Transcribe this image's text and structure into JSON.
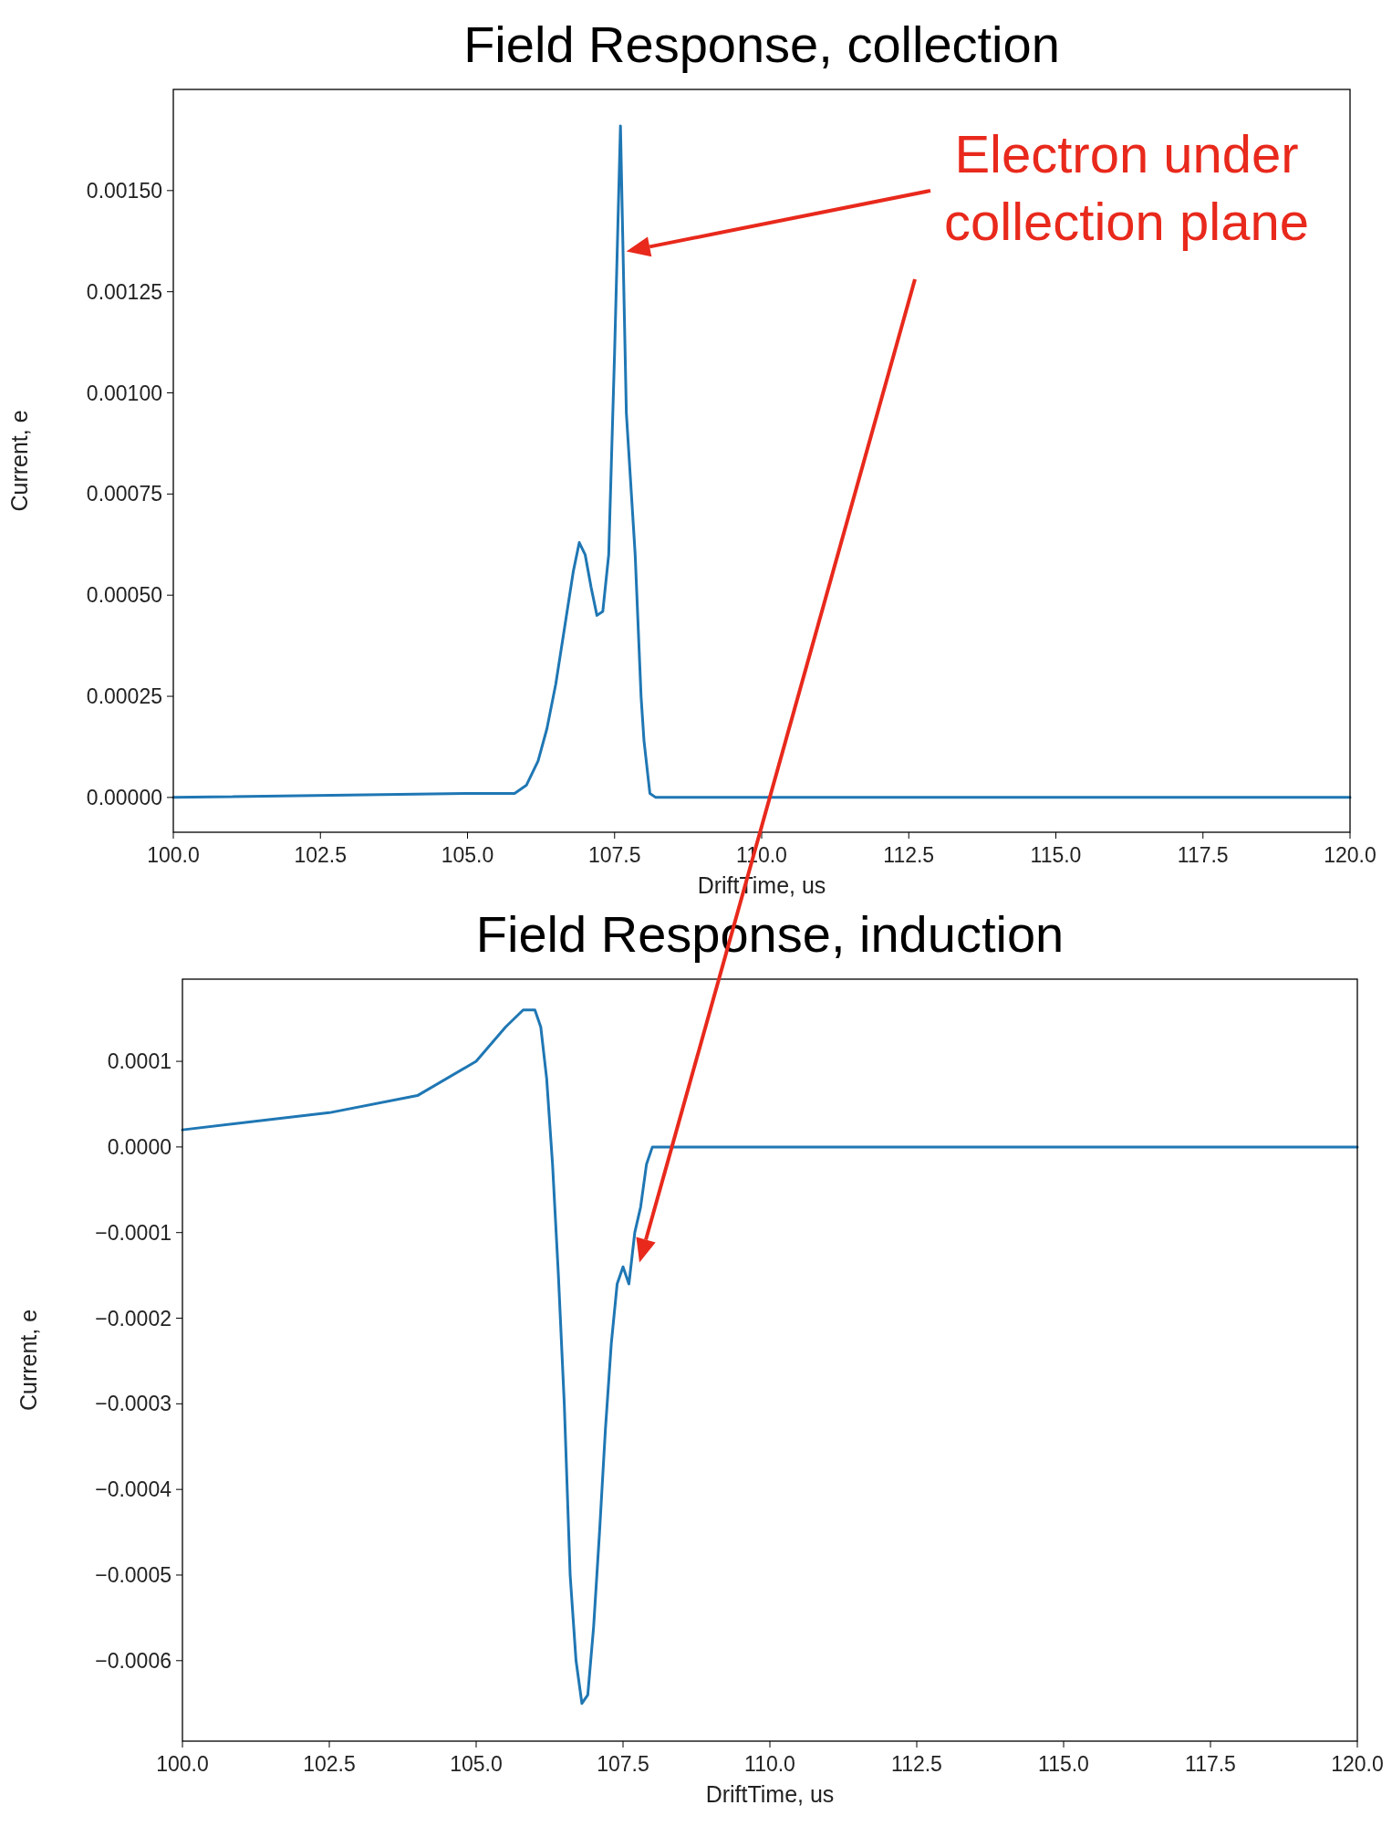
{
  "chart_data": [
    {
      "type": "line",
      "title": "Field Response, collection",
      "xlabel": "DriftTime, us",
      "ylabel": "Current, e",
      "x": [
        100,
        105,
        105.8,
        106,
        106.2,
        106.35,
        106.5,
        106.65,
        106.8,
        106.9,
        107,
        107.1,
        107.2,
        107.3,
        107.4,
        107.5,
        107.6,
        107.7,
        107.85,
        107.95,
        108,
        108.1,
        108.2,
        120
      ],
      "series": [
        {
          "color": "#1f77b4",
          "values": [
            0,
            1e-05,
            1e-05,
            3e-05,
            9e-05,
            0.00017,
            0.00028,
            0.00042,
            0.00056,
            0.00063,
            0.0006,
            0.00052,
            0.00045,
            0.00046,
            0.0006,
            0.0011,
            0.00166,
            0.00095,
            0.0006,
            0.00025,
            0.00014,
            1e-05,
            0,
            0
          ]
        }
      ],
      "xlim": [
        100,
        120
      ],
      "ylim": [
        -8.6e-05,
        0.00175
      ],
      "xticks": [
        {
          "value": 100,
          "label": "100.0"
        },
        {
          "value": 102.5,
          "label": "102.5"
        },
        {
          "value": 105,
          "label": "105.0"
        },
        {
          "value": 107.5,
          "label": "107.5"
        },
        {
          "value": 110,
          "label": "110.0"
        },
        {
          "value": 112.5,
          "label": "112.5"
        },
        {
          "value": 115,
          "label": "115.0"
        },
        {
          "value": 117.5,
          "label": "117.5"
        },
        {
          "value": 120,
          "label": "120.0"
        }
      ],
      "yticks": [
        {
          "value": 0,
          "label": "0.00000"
        },
        {
          "value": 0.00025,
          "label": "0.00025"
        },
        {
          "value": 0.0005,
          "label": "0.00050"
        },
        {
          "value": 0.00075,
          "label": "0.00075"
        },
        {
          "value": 0.001,
          "label": "0.00100"
        },
        {
          "value": 0.00125,
          "label": "0.00125"
        },
        {
          "value": 0.0015,
          "label": "0.00150"
        }
      ],
      "annotations": [
        "Electron under collection plane"
      ],
      "grid": false
    },
    {
      "type": "line",
      "title": "Field Response, induction",
      "xlabel": "DriftTime, us",
      "ylabel": "Current, e",
      "x": [
        100,
        102.5,
        104,
        105,
        105.5,
        105.8,
        106,
        106.1,
        106.2,
        106.3,
        106.4,
        106.5,
        106.6,
        106.7,
        106.8,
        106.9,
        107,
        107.1,
        107.2,
        107.3,
        107.4,
        107.5,
        107.6,
        107.7,
        107.8,
        107.9,
        108,
        120
      ],
      "series": [
        {
          "color": "#1f77b4",
          "values": [
            2e-05,
            4e-05,
            6e-05,
            0.0001,
            0.00014,
            0.00016,
            0.00016,
            0.00014,
            8e-05,
            -2e-05,
            -0.00015,
            -0.0003,
            -0.0005,
            -0.0006,
            -0.00065,
            -0.00064,
            -0.00056,
            -0.00045,
            -0.00033,
            -0.00023,
            -0.00016,
            -0.00014,
            -0.00016,
            -0.0001,
            -7e-05,
            -2e-05,
            0,
            0
          ]
        }
      ],
      "xlim": [
        100,
        120
      ],
      "ylim": [
        -0.000694,
        0.000196
      ],
      "xticks": [
        {
          "value": 100,
          "label": "100.0"
        },
        {
          "value": 102.5,
          "label": "102.5"
        },
        {
          "value": 105,
          "label": "105.0"
        },
        {
          "value": 107.5,
          "label": "107.5"
        },
        {
          "value": 110,
          "label": "110.0"
        },
        {
          "value": 112.5,
          "label": "112.5"
        },
        {
          "value": 115,
          "label": "115.0"
        },
        {
          "value": 117.5,
          "label": "117.5"
        },
        {
          "value": 120,
          "label": "120.0"
        }
      ],
      "yticks": [
        {
          "value": 0.0001,
          "label": "0.0001"
        },
        {
          "value": 0,
          "label": "0.0000"
        },
        {
          "value": -0.0001,
          "label": "−0.0001"
        },
        {
          "value": -0.0002,
          "label": "−0.0002"
        },
        {
          "value": -0.0003,
          "label": "−0.0003"
        },
        {
          "value": -0.0004,
          "label": "−0.0004"
        },
        {
          "value": -0.0005,
          "label": "−0.0005"
        },
        {
          "value": -0.0006,
          "label": "−0.0006"
        }
      ],
      "grid": false
    }
  ]
}
